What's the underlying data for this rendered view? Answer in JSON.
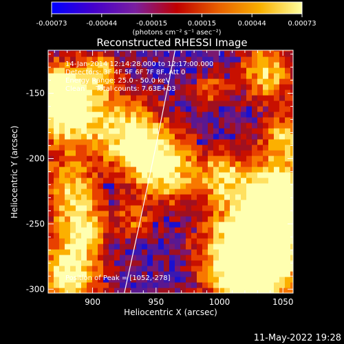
{
  "colorbar": {
    "tick_labels": [
      "-0.00073",
      "-0.00044",
      "-0.00015",
      "0.00015",
      "0.00044",
      "0.00073"
    ],
    "unit_label": "(photons cm⁻² s⁻¹ asec⁻²)",
    "range": [
      -0.00073,
      0.00073
    ],
    "colormap_stops": [
      "#0000ff",
      "#4400cc",
      "#7a1fa0",
      "#c00000",
      "#e86000",
      "#f8b000",
      "#ffffa0"
    ]
  },
  "title": "Reconstructed RHESSI Image",
  "info": {
    "time_range": "14-Jan-2014 12:14:28.000 to 12:17:00.000",
    "detectors": "Detectors: 3F 4F 5F 6F 7F 8F, Att 0",
    "energy_range": "Energy Range: 25.0 - 50.0 keV",
    "clean": "Clean     Total counts: 7.63E+03",
    "peak": "Position of Peak = [1052,-278]"
  },
  "axes": {
    "xlabel": "Heliocentric X (arcsec)",
    "ylabel": "Heliocentric Y (arcsec)",
    "xlim": [
      865,
      1058
    ],
    "ylim": [
      -303,
      -117
    ],
    "xticks": [
      900,
      950,
      1000,
      1050
    ],
    "yticks": [
      -150,
      -200,
      -250,
      -300
    ],
    "xtick_labels": [
      "900",
      "950",
      "1000",
      "1050"
    ],
    "ytick_labels": [
      "-150",
      "-200",
      "-250",
      "-300"
    ]
  },
  "limb": {
    "points": [
      [
        965,
        -117
      ],
      [
        950,
        -190
      ],
      [
        937,
        -250
      ],
      [
        925,
        -303
      ]
    ]
  },
  "peak_position": [
    1052,
    -278
  ],
  "footer_date": "11-May-2022 19:28"
}
